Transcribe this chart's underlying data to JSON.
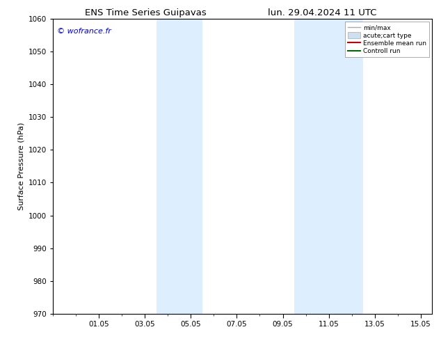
{
  "title_left": "ENS Time Series Guipavas",
  "title_right": "lun. 29.04.2024 11 UTC",
  "ylabel": "Surface Pressure (hPa)",
  "ylim": [
    970,
    1060
  ],
  "yticks": [
    970,
    980,
    990,
    1000,
    1010,
    1020,
    1030,
    1040,
    1050,
    1060
  ],
  "xtick_labels": [
    "01.05",
    "03.05",
    "05.05",
    "07.05",
    "09.05",
    "11.05",
    "13.05",
    "15.05"
  ],
  "xtick_positions": [
    2,
    4,
    6,
    8,
    10,
    12,
    14,
    16
  ],
  "x_min": 0,
  "x_max": 16.5,
  "shaded_bands": [
    {
      "x_start": 4.5,
      "x_end": 5.5
    },
    {
      "x_start": 5.5,
      "x_end": 6.5
    },
    {
      "x_start": 10.5,
      "x_end": 12.5
    },
    {
      "x_start": 12.5,
      "x_end": 13.5
    }
  ],
  "shade_color": "#ddeeff",
  "watermark_text": "© wofrance.fr",
  "watermark_color": "#0000cc",
  "legend_entries": [
    {
      "label": "min/max",
      "color": "#aaaaaa",
      "lw": 1.0,
      "type": "line"
    },
    {
      "label": "acute;cart type",
      "color": "#cce0f0",
      "lw": 8,
      "type": "patch"
    },
    {
      "label": "Ensemble mean run",
      "color": "#cc0000",
      "lw": 1.5,
      "type": "line"
    },
    {
      "label": "Controll run",
      "color": "#006600",
      "lw": 1.5,
      "type": "line"
    }
  ],
  "bg_color": "#ffffff",
  "tick_fontsize": 7.5,
  "title_fontsize": 9.5,
  "ylabel_fontsize": 8,
  "watermark_fontsize": 8
}
